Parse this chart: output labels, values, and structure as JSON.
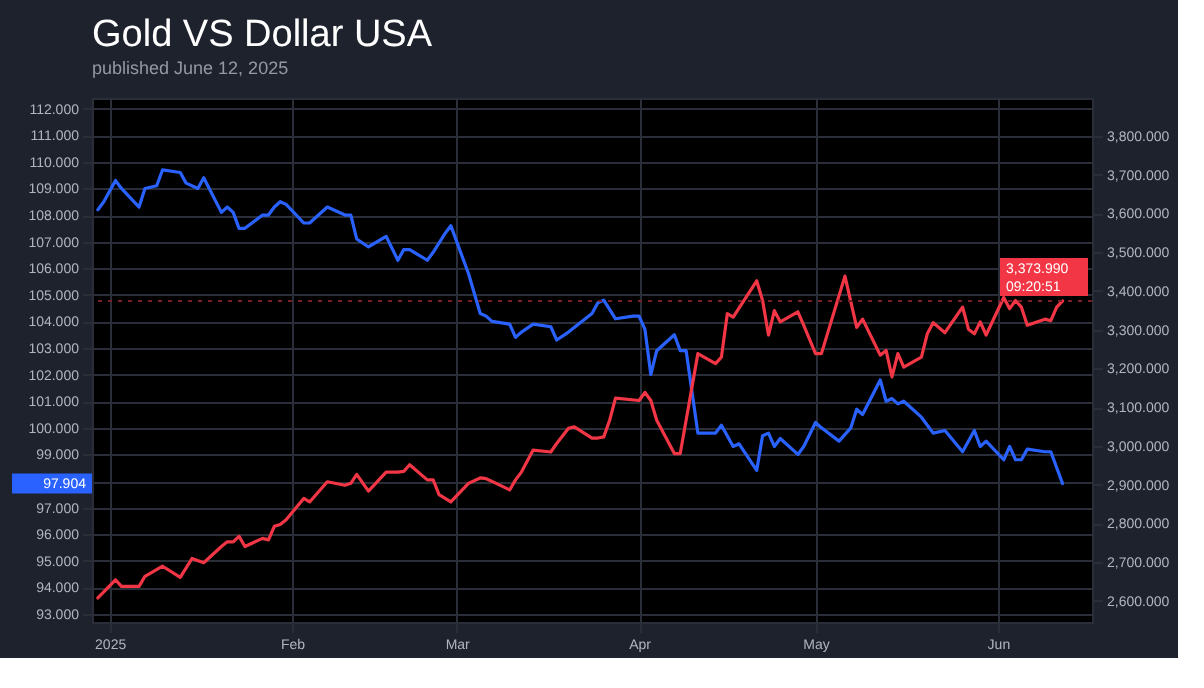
{
  "chart_data": {
    "type": "line",
    "title": "Gold VS Dollar USA",
    "subtitle": "published June 12, 2025",
    "xlim": [
      "2024-12-29",
      "2025-06-17"
    ],
    "xticks": [
      {
        "value": "2025-01-01",
        "label": "2025"
      },
      {
        "value": "2025-02-01",
        "label": "Feb"
      },
      {
        "value": "2025-03-01",
        "label": "Mar"
      },
      {
        "value": "2025-04-01",
        "label": "Apr"
      },
      {
        "value": "2025-05-01",
        "label": "May"
      },
      {
        "value": "2025-06-01",
        "label": "Jun"
      }
    ],
    "ylim": [
      92.7,
      112.4
    ],
    "yticks": [
      {
        "value": 93,
        "label": "93.000"
      },
      {
        "value": 94,
        "label": "94.000"
      },
      {
        "value": 95,
        "label": "95.000"
      },
      {
        "value": 96,
        "label": "96.000"
      },
      {
        "value": 97,
        "label": "97.000"
      },
      {
        "value": 98,
        "label": null
      },
      {
        "value": 99,
        "label": "99.000"
      },
      {
        "value": 100,
        "label": "100.000"
      },
      {
        "value": 101,
        "label": "101.000"
      },
      {
        "value": 102,
        "label": "102.000"
      },
      {
        "value": 103,
        "label": "103.000"
      },
      {
        "value": 104,
        "label": "104.000"
      },
      {
        "value": 105,
        "label": "105.000"
      },
      {
        "value": 106,
        "label": "106.000"
      },
      {
        "value": 107,
        "label": "107.000"
      },
      {
        "value": 108,
        "label": "108.000"
      },
      {
        "value": 109,
        "label": "109.000"
      },
      {
        "value": 110,
        "label": "110.000"
      },
      {
        "value": 111,
        "label": "111.000"
      },
      {
        "value": 112,
        "label": "112.000"
      }
    ],
    "y2lim": [
      2545,
      3898
    ],
    "y2ticks": [
      {
        "value": 2600,
        "label": "2,600.000"
      },
      {
        "value": 2700,
        "label": "2,700.000"
      },
      {
        "value": 2800,
        "label": "2,800.000"
      },
      {
        "value": 2900,
        "label": "2,900.000"
      },
      {
        "value": 3000,
        "label": "3,000.000"
      },
      {
        "value": 3100,
        "label": "3,100.000"
      },
      {
        "value": 3200,
        "label": "3,200.000"
      },
      {
        "value": 3300,
        "label": "3,300.000"
      },
      {
        "value": 3400,
        "label": "3,400.000"
      },
      {
        "value": 3500,
        "label": "3,500.000"
      },
      {
        "value": 3600,
        "label": "3,600.000"
      },
      {
        "value": 3700,
        "label": "3,700.000"
      },
      {
        "value": 3800,
        "label": "3,800.000"
      }
    ],
    "grid": true,
    "line_style": "solid",
    "series": [
      {
        "color": "#2962ff",
        "axis": "y",
        "x": [
          "2024-12-30",
          "2024-12-31",
          "2025-01-02",
          "2025-01-03",
          "2025-01-06",
          "2025-01-07",
          "2025-01-09",
          "2025-01-10",
          "2025-01-13",
          "2025-01-14",
          "2025-01-16",
          "2025-01-17",
          "2025-01-20",
          "2025-01-21",
          "2025-01-22",
          "2025-01-23",
          "2025-01-24",
          "2025-01-27",
          "2025-01-28",
          "2025-01-29",
          "2025-01-30",
          "2025-01-31",
          "2025-02-03",
          "2025-02-04",
          "2025-02-07",
          "2025-02-10",
          "2025-02-11",
          "2025-02-12",
          "2025-02-14",
          "2025-02-17",
          "2025-02-19",
          "2025-02-20",
          "2025-02-21",
          "2025-02-24",
          "2025-02-25",
          "2025-02-27",
          "2025-02-28",
          "2025-03-03",
          "2025-03-05",
          "2025-03-06",
          "2025-03-07",
          "2025-03-10",
          "2025-03-11",
          "2025-03-12",
          "2025-03-14",
          "2025-03-17",
          "2025-03-18",
          "2025-03-20",
          "2025-03-24",
          "2025-03-25",
          "2025-03-26",
          "2025-03-28",
          "2025-03-31",
          "2025-04-01",
          "2025-04-02",
          "2025-04-03",
          "2025-04-04",
          "2025-04-07",
          "2025-04-08",
          "2025-04-09",
          "2025-04-11",
          "2025-04-14",
          "2025-04-15",
          "2025-04-17",
          "2025-04-18",
          "2025-04-21",
          "2025-04-22",
          "2025-04-23",
          "2025-04-24",
          "2025-04-25",
          "2025-04-28",
          "2025-04-29",
          "2025-05-01",
          "2025-05-02",
          "2025-05-05",
          "2025-05-07",
          "2025-05-08",
          "2025-05-09",
          "2025-05-12",
          "2025-05-13",
          "2025-05-14",
          "2025-05-15",
          "2025-05-16",
          "2025-05-19",
          "2025-05-21",
          "2025-05-23",
          "2025-05-26",
          "2025-05-28",
          "2025-05-29",
          "2025-05-30",
          "2025-06-02",
          "2025-06-03",
          "2025-06-04",
          "2025-06-05",
          "2025-06-06",
          "2025-06-09",
          "2025-06-10",
          "2025-06-12"
        ],
        "values": [
          108.2,
          108.5,
          109.3,
          109.0,
          108.3,
          109.0,
          109.1,
          109.7,
          109.6,
          109.2,
          109.0,
          109.4,
          108.1,
          108.3,
          108.1,
          107.5,
          107.5,
          108.0,
          108.0,
          108.3,
          108.5,
          108.4,
          107.7,
          107.7,
          108.3,
          108.0,
          108.0,
          107.1,
          106.8,
          107.2,
          106.3,
          106.7,
          106.7,
          106.3,
          106.6,
          107.3,
          107.6,
          105.8,
          104.3,
          104.2,
          104.0,
          103.9,
          103.4,
          103.6,
          103.9,
          103.8,
          103.3,
          103.6,
          104.3,
          104.7,
          104.8,
          104.1,
          104.2,
          104.2,
          103.7,
          102.0,
          102.9,
          103.5,
          102.9,
          102.9,
          99.8,
          99.8,
          100.1,
          99.3,
          99.4,
          98.4,
          99.7,
          99.8,
          99.3,
          99.6,
          99.0,
          99.3,
          100.2,
          100.0,
          99.5,
          100.0,
          100.7,
          100.5,
          101.8,
          101.0,
          101.1,
          100.9,
          101.0,
          100.4,
          99.8,
          99.9,
          99.1,
          99.9,
          99.3,
          99.5,
          98.8,
          99.3,
          98.8,
          98.8,
          99.2,
          99.1,
          99.1,
          97.904
        ]
      },
      {
        "color": "#f23645",
        "axis": "y2",
        "x": [
          "2024-12-30",
          "2025-01-02",
          "2025-01-03",
          "2025-01-06",
          "2025-01-07",
          "2025-01-10",
          "2025-01-13",
          "2025-01-15",
          "2025-01-17",
          "2025-01-20",
          "2025-01-21",
          "2025-01-22",
          "2025-01-23",
          "2025-01-24",
          "2025-01-27",
          "2025-01-28",
          "2025-01-29",
          "2025-01-30",
          "2025-01-31",
          "2025-02-03",
          "2025-02-04",
          "2025-02-07",
          "2025-02-10",
          "2025-02-11",
          "2025-02-12",
          "2025-02-14",
          "2025-02-17",
          "2025-02-19",
          "2025-02-20",
          "2025-02-21",
          "2025-02-24",
          "2025-02-25",
          "2025-02-26",
          "2025-02-28",
          "2025-03-03",
          "2025-03-05",
          "2025-03-06",
          "2025-03-07",
          "2025-03-10",
          "2025-03-11",
          "2025-03-12",
          "2025-03-14",
          "2025-03-17",
          "2025-03-18",
          "2025-03-20",
          "2025-03-21",
          "2025-03-24",
          "2025-03-25",
          "2025-03-26",
          "2025-03-27",
          "2025-03-28",
          "2025-04-01",
          "2025-04-02",
          "2025-04-03",
          "2025-04-04",
          "2025-04-07",
          "2025-04-08",
          "2025-04-09",
          "2025-04-11",
          "2025-04-14",
          "2025-04-15",
          "2025-04-16",
          "2025-04-17",
          "2025-04-21",
          "2025-04-22",
          "2025-04-23",
          "2025-04-24",
          "2025-04-25",
          "2025-04-28",
          "2025-04-29",
          "2025-05-01",
          "2025-05-02",
          "2025-05-06",
          "2025-05-08",
          "2025-05-09",
          "2025-05-12",
          "2025-05-13",
          "2025-05-14",
          "2025-05-15",
          "2025-05-16",
          "2025-05-19",
          "2025-05-20",
          "2025-05-21",
          "2025-05-23",
          "2025-05-26",
          "2025-05-27",
          "2025-05-28",
          "2025-05-29",
          "2025-05-30",
          "2025-06-02",
          "2025-06-03",
          "2025-06-04",
          "2025-06-05",
          "2025-06-06",
          "2025-06-09",
          "2025-06-10",
          "2025-06-11",
          "2025-06-12"
        ],
        "values": [
          2607,
          2654,
          2637,
          2637,
          2663,
          2689,
          2660,
          2709,
          2698,
          2740,
          2752,
          2752,
          2766,
          2740,
          2761,
          2757,
          2792,
          2797,
          2809,
          2864,
          2855,
          2907,
          2898,
          2903,
          2926,
          2883,
          2932,
          2932,
          2934,
          2951,
          2912,
          2912,
          2874,
          2855,
          2903,
          2917,
          2915,
          2908,
          2886,
          2912,
          2932,
          2989,
          2984,
          3006,
          3045,
          3049,
          3020,
          3020,
          3023,
          3066,
          3123,
          3117,
          3138,
          3117,
          3066,
          2980,
          2980,
          3066,
          3238,
          3212,
          3229,
          3341,
          3332,
          3426,
          3375,
          3286,
          3349,
          3320,
          3346,
          3311,
          3238,
          3238,
          3438,
          3306,
          3327,
          3234,
          3246,
          3178,
          3238,
          3203,
          3229,
          3289,
          3318,
          3292,
          3358,
          3301,
          3289,
          3320,
          3286,
          3383,
          3354,
          3375,
          3358,
          3311,
          3327,
          3323,
          3358,
          3373.99
        ]
      }
    ],
    "ref_lines": [
      {
        "axis": "y2",
        "value": 3373.99,
        "label": "3,373.990\n09:20:51",
        "color": "#7a1f28",
        "line_style": "dotted"
      }
    ],
    "annotations": [
      "97.904"
    ]
  }
}
